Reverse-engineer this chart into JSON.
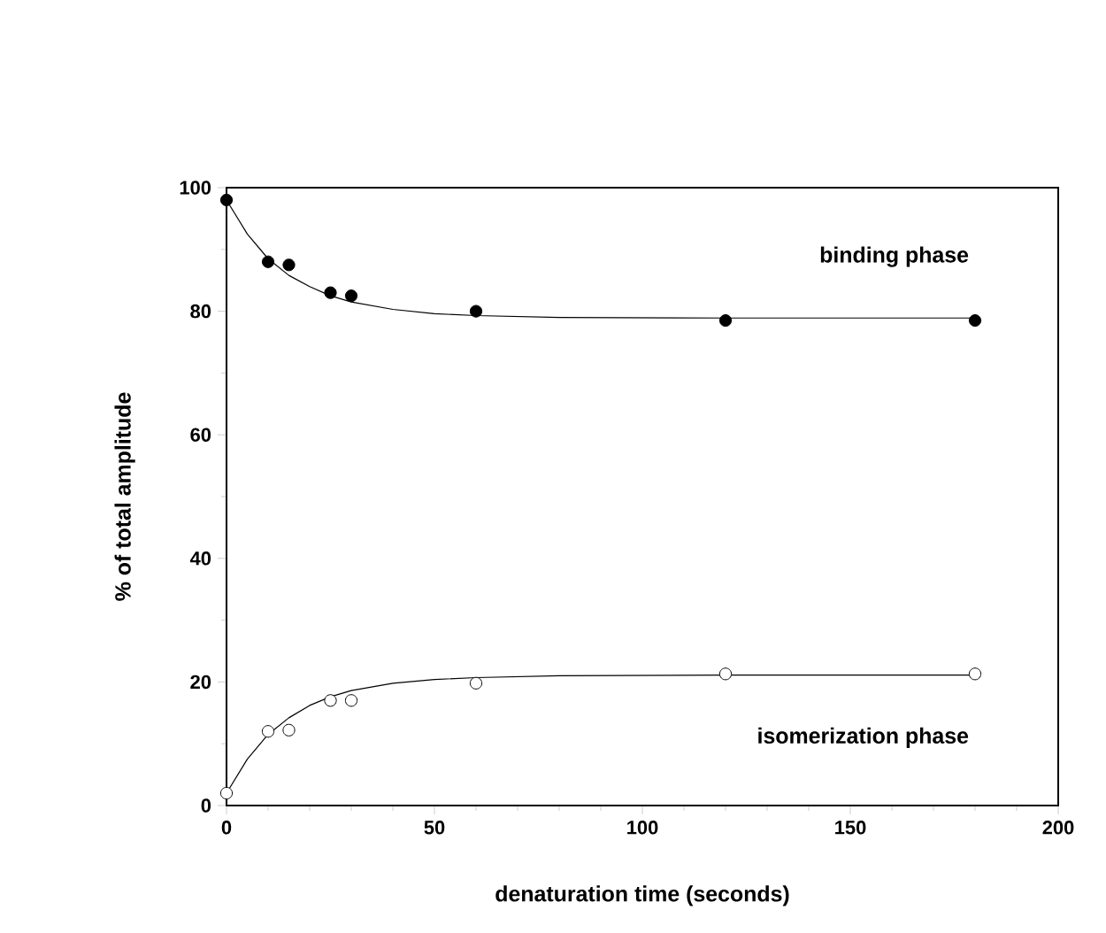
{
  "chart_data": {
    "type": "scatter",
    "xlabel": "denaturation time (seconds)",
    "ylabel": "% of total amplitude",
    "xlim": [
      0,
      200
    ],
    "ylim": [
      0,
      100
    ],
    "xticks": [
      0,
      50,
      100,
      150,
      200
    ],
    "yticks": [
      0,
      20,
      40,
      60,
      80,
      100
    ],
    "grid": false,
    "legend": false,
    "series": [
      {
        "name": "binding phase",
        "marker": "circle",
        "color": "#000000",
        "x": [
          0,
          10,
          15,
          25,
          30,
          60,
          120,
          180
        ],
        "values": [
          98,
          88,
          87.5,
          83,
          82.5,
          80,
          78.5,
          78.5
        ]
      },
      {
        "name": "isomerization phase",
        "marker": "circle",
        "color": "#000000",
        "x": [
          0,
          10,
          15,
          25,
          30,
          60,
          120,
          180
        ],
        "values": [
          2,
          12,
          12.2,
          17,
          17,
          19.8,
          21.3,
          21.3
        ]
      },
      {
        "type": "line",
        "marker": "none",
        "color": "#000000",
        "x": [
          0,
          5,
          10,
          15,
          20,
          25,
          30,
          40,
          50,
          60,
          80,
          120,
          180
        ],
        "values": [
          98,
          92.5,
          88.5,
          85.8,
          84,
          82.5,
          81.5,
          80.3,
          79.6,
          79.3,
          79,
          78.9,
          78.9
        ]
      },
      {
        "type": "line",
        "marker": "none",
        "color": "#000000",
        "x": [
          0,
          5,
          10,
          15,
          20,
          25,
          30,
          40,
          50,
          60,
          80,
          120,
          180
        ],
        "values": [
          2,
          7.5,
          11.5,
          14.2,
          16.2,
          17.6,
          18.6,
          19.8,
          20.4,
          20.7,
          21,
          21.1,
          21.1
        ]
      }
    ]
  }
}
